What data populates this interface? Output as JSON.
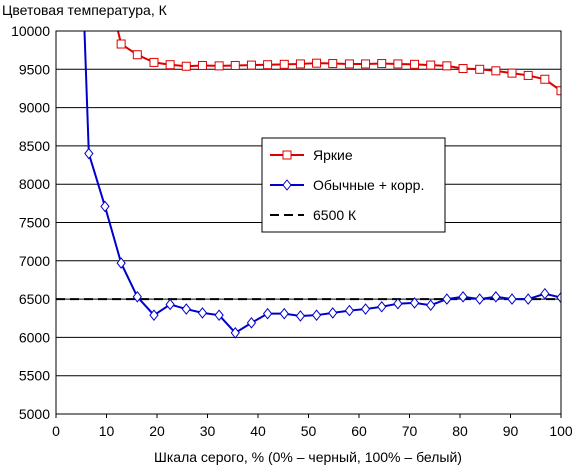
{
  "chart_data": {
    "type": "line",
    "title": "Цветовая температура, К",
    "xlabel": "Шкала серого, % (0% – черный, 100% – белый)",
    "ylabel": "",
    "xlim": [
      0,
      100
    ],
    "ylim": [
      5000,
      10000
    ],
    "xticks": [
      0,
      10,
      20,
      30,
      40,
      50,
      60,
      70,
      80,
      90,
      100
    ],
    "yticks": [
      5000,
      5500,
      6000,
      6500,
      7000,
      7500,
      8000,
      8500,
      9000,
      9500,
      10000
    ],
    "grid": "horizontal",
    "legend_position": "center-right",
    "series": [
      {
        "name": "Яркие",
        "color": "#dd0000",
        "marker": "square",
        "x": [
          12.9,
          16.1,
          19.4,
          22.6,
          25.8,
          29.0,
          32.3,
          35.5,
          38.7,
          41.9,
          45.2,
          48.4,
          51.6,
          54.8,
          58.1,
          61.3,
          64.5,
          67.7,
          71.0,
          74.2,
          77.4,
          80.6,
          83.9,
          87.1,
          90.3,
          93.5,
          96.8,
          100.0
        ],
        "y": [
          9830,
          9690,
          9590,
          9560,
          9540,
          9550,
          9545,
          9550,
          9555,
          9560,
          9565,
          9570,
          9580,
          9575,
          9570,
          9570,
          9575,
          9570,
          9565,
          9555,
          9545,
          9510,
          9500,
          9480,
          9450,
          9420,
          9370,
          9220
        ]
      },
      {
        "name": "Обычные + корр.",
        "color": "#0000cc",
        "marker": "diamond",
        "x": [
          6.5,
          9.7,
          12.9,
          16.1,
          19.4,
          22.6,
          25.8,
          29.0,
          32.3,
          35.5,
          38.7,
          41.9,
          45.2,
          48.4,
          51.6,
          54.8,
          58.1,
          61.3,
          64.5,
          67.7,
          71.0,
          74.2,
          77.4,
          80.6,
          83.9,
          87.1,
          90.3,
          93.5,
          96.8,
          100.0
        ],
        "y": [
          8400,
          7710,
          6970,
          6530,
          6290,
          6430,
          6370,
          6320,
          6290,
          6060,
          6190,
          6310,
          6310,
          6280,
          6290,
          6320,
          6350,
          6370,
          6400,
          6440,
          6450,
          6420,
          6500,
          6530,
          6500,
          6530,
          6500,
          6500,
          6570,
          6520
        ]
      },
      {
        "name": "6500 К",
        "color": "#000000",
        "dashed": true,
        "x": [
          0,
          100
        ],
        "y": [
          6500,
          6500
        ]
      }
    ]
  }
}
